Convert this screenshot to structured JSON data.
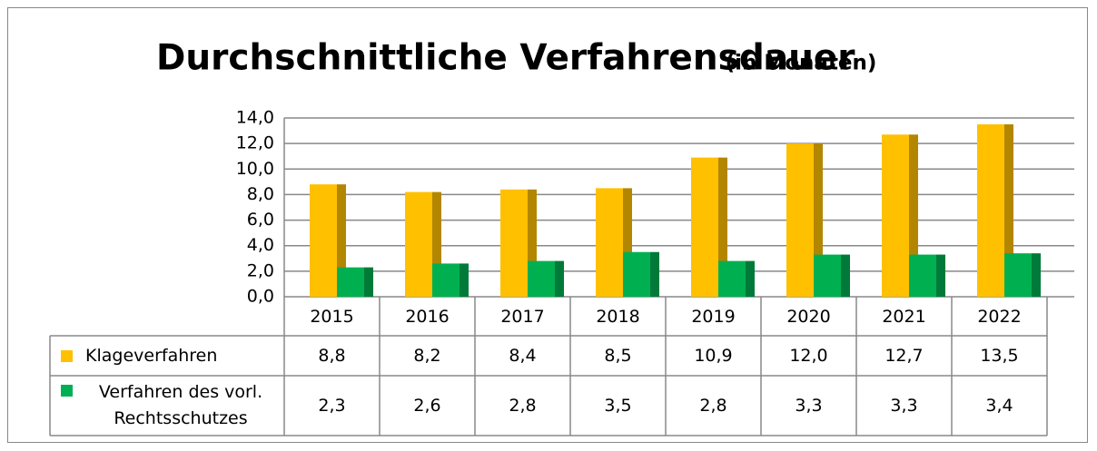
{
  "chart_data": {
    "type": "bar",
    "title": "Durchschnittliche Verfahrensdauer",
    "subtitle": "(in Monaten)",
    "categories": [
      "2015",
      "2016",
      "2017",
      "2018",
      "2019",
      "2020",
      "2021",
      "2022"
    ],
    "series": [
      {
        "name": "Klageverfahren",
        "color": "#ffc000",
        "side_color": "#b38600",
        "values": [
          8.8,
          8.2,
          8.4,
          8.5,
          10.9,
          12.0,
          12.7,
          13.5
        ],
        "value_labels": [
          "8,8",
          "8,2",
          "8,4",
          "8,5",
          "10,9",
          "12,0",
          "12,7",
          "13,5"
        ]
      },
      {
        "name": "Verfahren des vorl. Rechtsschutzes",
        "color": "#00b050",
        "side_color": "#007a38",
        "values": [
          2.3,
          2.6,
          2.8,
          3.5,
          2.8,
          3.3,
          3.3,
          3.4
        ],
        "value_labels": [
          "2,3",
          "2,6",
          "2,8",
          "3,5",
          "2,8",
          "3,3",
          "3,3",
          "3,4"
        ]
      }
    ],
    "ylim": [
      0,
      14
    ],
    "yticks": [
      {
        "value": 0,
        "label": "0,0"
      },
      {
        "value": 2,
        "label": "2,0"
      },
      {
        "value": 4,
        "label": "4,0"
      },
      {
        "value": 6,
        "label": "6,0"
      },
      {
        "value": 8,
        "label": "8,0"
      },
      {
        "value": 10,
        "label": "10,0"
      },
      {
        "value": 12,
        "label": "12,0"
      },
      {
        "value": 14,
        "label": "14,0"
      }
    ],
    "grid": true
  }
}
